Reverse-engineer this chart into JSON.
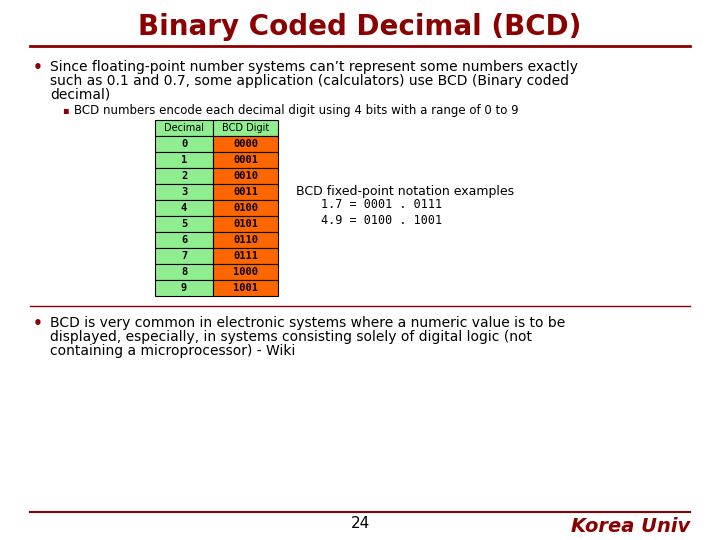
{
  "title": "Binary Coded Decimal (BCD)",
  "title_color": "#8B0000",
  "title_fontsize": 20,
  "title_fontweight": "bold",
  "bg_color": "#FFFFFF",
  "line_color": "#8B0000",
  "bullet1_line1": "Since floating-point number systems can’t represent some numbers exactly",
  "bullet1_line2": "such as 0.1 and 0.7, some application (calculators) use BCD (Binary coded",
  "bullet1_line3": "decimal)",
  "sub_bullet": "BCD numbers encode each decimal digit using 4 bits with a range of 0 to 9",
  "table_header": [
    "Decimal",
    "BCD Digit"
  ],
  "table_data": [
    [
      "0",
      "0000"
    ],
    [
      "1",
      "0001"
    ],
    [
      "2",
      "0010"
    ],
    [
      "3",
      "0011"
    ],
    [
      "4",
      "0100"
    ],
    [
      "5",
      "0101"
    ],
    [
      "6",
      "0110"
    ],
    [
      "7",
      "0111"
    ],
    [
      "8",
      "1000"
    ],
    [
      "9",
      "1001"
    ]
  ],
  "header_bg": "#90EE90",
  "col1_bg": "#90EE90",
  "col2_bg": "#FF6600",
  "bcd_example_title": "BCD fixed-point notation examples",
  "bcd_example_line1": "1.7 = 0001 . 0111",
  "bcd_example_line2": "4.9 = 0100 . 1001",
  "bullet2_line1": "BCD is very common in electronic systems where a numeric value is to be",
  "bullet2_line2": "displayed, especially, in systems consisting solely of digital logic (not",
  "bullet2_line3": "containing a microprocessor) - Wiki",
  "footer_number": "24",
  "footer_text": "Korea Univ",
  "footer_color": "#8B0000",
  "bullet_color": "#8B0000"
}
